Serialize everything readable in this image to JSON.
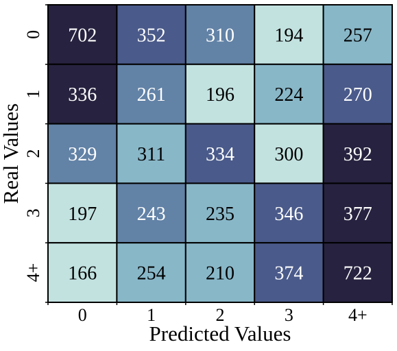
{
  "chart_data": {
    "type": "heatmap",
    "title": "",
    "xlabel": "Predicted Values",
    "ylabel": "Real Values",
    "x_categories": [
      "0",
      "1",
      "2",
      "3",
      "4+"
    ],
    "y_categories": [
      "0",
      "1",
      "2",
      "3",
      "4+"
    ],
    "values": [
      [
        702,
        352,
        310,
        194,
        257
      ],
      [
        336,
        261,
        196,
        224,
        270
      ],
      [
        329,
        311,
        334,
        300,
        392
      ],
      [
        197,
        243,
        235,
        346,
        377
      ],
      [
        166,
        254,
        210,
        374,
        722
      ]
    ],
    "color_levels": [
      [
        5,
        3,
        2,
        0,
        1
      ],
      [
        5,
        2,
        0,
        1,
        3
      ],
      [
        2,
        1,
        3,
        0,
        5
      ],
      [
        0,
        2,
        1,
        3,
        5
      ],
      [
        0,
        1,
        1,
        3,
        5
      ]
    ],
    "color_scale": [
      "#c2e2e0",
      "#88b7c8",
      "#6282a6",
      "#4a5a8a",
      "#363d6b",
      "#27223f"
    ],
    "label_colors": {
      "light": "#ffffff",
      "dark": "#000000"
    },
    "grid": true,
    "colorbar": false,
    "cell_border_color": "#000000"
  }
}
